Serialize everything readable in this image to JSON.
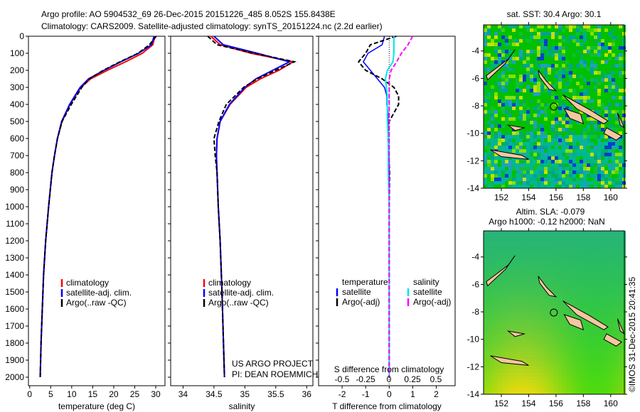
{
  "title_lines": [
    "Argo profile: AO 5904532_69 26-Dec-2015 20151226_485 8.052S 155.8438E",
    "Climatology: CARS2009. Satellite-adjusted climatology: synTS_20151224.nc (2.2d earlier)"
  ],
  "credit": "©IMOS 31-Dec-2015 20:41:35",
  "project_lines": [
    "US ARGO PROJECT",
    "PI: DEAN ROEMMICH"
  ],
  "colors": {
    "climatology": "#ff0000",
    "satellite": "#0000ff",
    "argo": "#000000",
    "sal_satellite": "#00e5ee",
    "sal_argo": "#ff00ff",
    "land": "#f5c6a0"
  },
  "chart_data": [
    {
      "type": "line",
      "id": "temp",
      "xlabel": "temperature (deg C)",
      "xlim": [
        -0.3,
        32.2
      ],
      "ylim": [
        0,
        2050
      ],
      "xticks": [
        0,
        5,
        10,
        15,
        20,
        25,
        30
      ],
      "yticks": [
        0,
        100,
        200,
        300,
        400,
        500,
        600,
        700,
        800,
        900,
        1000,
        1100,
        1200,
        1300,
        1400,
        1500,
        1600,
        1700,
        1800,
        1900,
        2000
      ],
      "legend": [
        "climatology",
        "satellite-adj. clim.",
        "Argo(..raw -QC)"
      ],
      "depth": [
        0,
        50,
        100,
        150,
        200,
        250,
        300,
        400,
        500,
        600,
        700,
        800,
        1000,
        1200,
        1400,
        1600,
        1800,
        2000
      ],
      "series": [
        {
          "name": "climatology",
          "values": [
            29.8,
            29.3,
            26.8,
            22.8,
            18.5,
            14.5,
            12.2,
            9.6,
            7.7,
            6.6,
            5.9,
            5.3,
            4.5,
            3.8,
            3.3,
            3.0,
            2.7,
            2.5
          ]
        },
        {
          "name": "satellite-adj. clim.",
          "values": [
            29.6,
            29.0,
            25.9,
            21.7,
            17.7,
            14.0,
            12.0,
            9.5,
            7.6,
            6.6,
            5.9,
            5.3,
            4.5,
            3.8,
            3.3,
            3.0,
            2.7,
            2.5
          ]
        },
        {
          "name": "Argo(..raw -QC)",
          "values": [
            30.1,
            28.5,
            25.8,
            21.5,
            17.5,
            14.2,
            12.4,
            9.9,
            7.7,
            6.6,
            5.9,
            5.3,
            4.5,
            3.8,
            3.3,
            3.0,
            2.7,
            2.5
          ]
        }
      ]
    },
    {
      "type": "line",
      "id": "sal",
      "xlabel": "salinity",
      "xlim": [
        33.8,
        36.1
      ],
      "ylim": [
        0,
        2050
      ],
      "xticks": [
        34,
        34.5,
        35,
        35.5,
        36
      ],
      "legend": [
        "climatology",
        "satellite-adj. clim.",
        "Argo(..raw -QC)"
      ],
      "depth": [
        0,
        50,
        100,
        150,
        200,
        250,
        300,
        400,
        500,
        600,
        700,
        800,
        1000,
        1200,
        1500,
        2000
      ],
      "series": [
        {
          "name": "climatology",
          "values": [
            34.45,
            34.6,
            35.1,
            35.78,
            35.55,
            35.25,
            35.02,
            34.76,
            34.6,
            34.55,
            34.54,
            34.55,
            34.57,
            34.6,
            34.63,
            34.67
          ]
        },
        {
          "name": "satellite-adj. clim.",
          "values": [
            34.5,
            34.65,
            35.2,
            35.72,
            35.45,
            35.18,
            35.0,
            34.75,
            34.6,
            34.55,
            34.54,
            34.55,
            34.57,
            34.6,
            34.63,
            34.67
          ]
        },
        {
          "name": "Argo(..raw -QC)",
          "values": [
            34.4,
            34.55,
            35.15,
            35.8,
            35.5,
            35.2,
            34.98,
            34.7,
            34.58,
            34.5,
            34.52,
            34.55,
            34.57,
            34.6,
            34.63,
            34.67
          ]
        }
      ]
    },
    {
      "type": "line",
      "id": "diff",
      "xlabel": "T difference from climatology",
      "x2label": "S difference from climatology",
      "xlim": [
        -3,
        2.8
      ],
      "ylim": [
        0,
        2050
      ],
      "xticks": [
        -2,
        -1,
        0,
        1,
        2
      ],
      "x2ticks": [
        -0.5,
        -0.25,
        0,
        0.25,
        0.5
      ],
      "legend_titles": [
        "temperature",
        "salinity"
      ],
      "legend": [
        "satellite",
        "Argo(-adj)",
        "satellite",
        "Argo(-adj)"
      ],
      "depth": [
        0,
        50,
        100,
        150,
        200,
        250,
        300,
        350,
        400,
        450,
        500,
        600,
        800,
        1000,
        1500,
        2000
      ],
      "series": [
        {
          "name": "T satellite",
          "values": [
            -0.2,
            -0.3,
            -0.9,
            -1.1,
            -0.8,
            -0.5,
            -0.2,
            -0.1,
            -0.1,
            -0.05,
            -0.05,
            -0.03,
            0,
            0,
            0,
            0
          ]
        },
        {
          "name": "T Argo(-adj)",
          "values": [
            0.3,
            -0.8,
            -1.0,
            -1.3,
            -1.0,
            -0.3,
            0.2,
            0.4,
            0.4,
            0.2,
            0.0,
            -0.05,
            0.02,
            0.0,
            0.0,
            0.0
          ]
        },
        {
          "name": "S satellite",
          "values": [
            0.05,
            0.05,
            0.05,
            0.04,
            -0.02,
            -0.04,
            -0.03,
            -0.02,
            -0.02,
            -0.02,
            -0.02,
            -0.01,
            -0.01,
            0,
            0,
            0
          ]
        },
        {
          "name": "S Argo(-adj)",
          "values": [
            0.25,
            0.2,
            0.13,
            0.08,
            0.02,
            0.0,
            0.0,
            0.0,
            0.0,
            0.0,
            0.0,
            0.0,
            0.0,
            0.0,
            0.0,
            0.0
          ]
        }
      ]
    },
    {
      "type": "heatmap",
      "id": "sst",
      "title": "sat. SST: 30.4  Argo: 30.1",
      "xlim": [
        150.7,
        161
      ],
      "ylim": [
        -14,
        -2.1
      ],
      "xticks": [
        152,
        154,
        156,
        158,
        160
      ],
      "yticks": [
        -4,
        -6,
        -8,
        -10,
        -12,
        -14
      ],
      "marker": [
        155.84,
        -8.05
      ]
    },
    {
      "type": "heatmap",
      "id": "sla",
      "title_lines": [
        "Altim. SLA: -0.079",
        "Argo h1000: -0.12 h2000: NaN"
      ],
      "xlim": [
        150.7,
        161
      ],
      "ylim": [
        -14,
        -2.1
      ],
      "xticks": [
        152,
        154,
        156,
        158,
        160
      ],
      "yticks": [
        -4,
        -6,
        -8,
        -10,
        -12,
        -14
      ],
      "marker": [
        155.84,
        -8.05
      ]
    }
  ]
}
